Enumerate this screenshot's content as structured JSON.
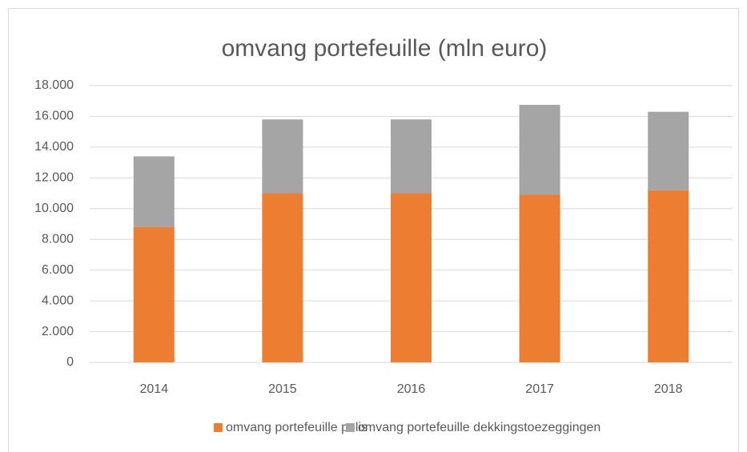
{
  "chart_data": {
    "type": "bar",
    "stacked": true,
    "title": "omvang portefeuille (mln euro)",
    "categories": [
      "2014",
      "2015",
      "2016",
      "2017",
      "2018"
    ],
    "series": [
      {
        "name": "omvang portefeuille polis",
        "color": "#ed7d31",
        "values": [
          8800,
          11000,
          11000,
          10900,
          11200
        ]
      },
      {
        "name": "omvang portefeuille dekkingstoezeggingen",
        "color": "#a5a5a5",
        "values": [
          4600,
          4800,
          4800,
          5850,
          5100
        ]
      }
    ],
    "ylim": [
      0,
      18000
    ],
    "yticks": [
      0,
      {
        "value": 2000,
        "label": "2.000"
      },
      {
        "value": 4000,
        "label": "4.000"
      },
      {
        "value": 6000,
        "label": "6.000"
      },
      {
        "value": 8000,
        "label": "8.000"
      },
      {
        "value": 10000,
        "label": "10.000"
      },
      {
        "value": 12000,
        "label": "12.000"
      },
      {
        "value": 14000,
        "label": "14.000"
      },
      {
        "value": 16000,
        "label": "16.000"
      },
      {
        "value": 18000,
        "label": "18.000"
      }
    ],
    "grid": true,
    "legend": "bottom"
  }
}
